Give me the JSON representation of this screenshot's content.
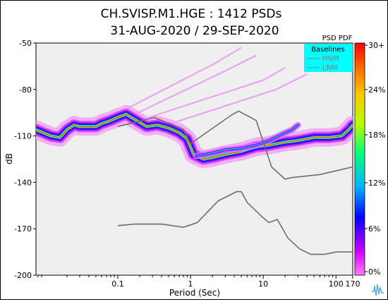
{
  "chart_data": {
    "type": "heatmap",
    "title_line1": "CH.SVISP.M1.HGE : 1412 PSDs",
    "title_line2": "31-AUG-2020 / 29-SEP-2020",
    "xlabel": "Period (Sec)",
    "ylabel": "dB",
    "x_scale": "log",
    "xlim": [
      0.0075,
      170
    ],
    "ylim": [
      -200,
      -50
    ],
    "x_ticks": [
      {
        "value": 0.1,
        "label": "0.1"
      },
      {
        "value": 1,
        "label": "1"
      },
      {
        "value": 10,
        "label": "10"
      },
      {
        "value": 100,
        "label": "100"
      },
      {
        "value": 170,
        "label": "170"
      }
    ],
    "y_ticks": [
      -50,
      -80,
      -110,
      -140,
      -170,
      -200
    ],
    "legend": {
      "title": "Baselines",
      "entries": [
        {
          "name": "HNM",
          "color": "#808080"
        },
        {
          "name": "LNM",
          "color": "#808080"
        }
      ],
      "background": "#00ffff"
    },
    "colorbar": {
      "title": "PSD PDF",
      "labels": [
        "30+",
        "24%",
        "18%",
        "12%",
        "6%",
        "0%"
      ],
      "stops": [
        "#ff00ff",
        "#0000ff",
        "#00c8ff",
        "#00ff00",
        "#ffff00",
        "#ff8000",
        "#ff0000"
      ]
    },
    "background_color": "#efefef",
    "hnm": [
      [
        0.1,
        -104
      ],
      [
        0.22,
        -100
      ],
      [
        0.32,
        -98
      ],
      [
        0.8,
        -106
      ],
      [
        1.0,
        -115
      ],
      [
        3.8,
        -96
      ],
      [
        4.6,
        -94
      ],
      [
        8.0,
        -100
      ],
      [
        13,
        -130
      ],
      [
        20,
        -138
      ],
      [
        24,
        -137
      ],
      [
        60,
        -135
      ],
      [
        170,
        -130
      ]
    ],
    "lnm": [
      [
        0.1,
        -168
      ],
      [
        0.17,
        -167
      ],
      [
        0.4,
        -167
      ],
      [
        0.8,
        -169
      ],
      [
        1.24,
        -166
      ],
      [
        2.4,
        -152
      ],
      [
        4.3,
        -146
      ],
      [
        5.0,
        -146
      ],
      [
        6.0,
        -153
      ],
      [
        10,
        -163
      ],
      [
        12,
        -166
      ],
      [
        15.6,
        -164
      ],
      [
        21.9,
        -176
      ],
      [
        31.6,
        -183
      ],
      [
        45,
        -186.5
      ],
      [
        70,
        -186.5
      ],
      [
        101,
        -185
      ],
      [
        170,
        -185
      ]
    ],
    "pdf_ridge": [
      [
        0.0075,
        -106
      ],
      [
        0.012,
        -110
      ],
      [
        0.016,
        -111
      ],
      [
        0.02,
        -106
      ],
      [
        0.025,
        -103
      ],
      [
        0.03,
        -104
      ],
      [
        0.04,
        -104
      ],
      [
        0.05,
        -104
      ],
      [
        0.06,
        -102
      ],
      [
        0.08,
        -100
      ],
      [
        0.1,
        -98
      ],
      [
        0.13,
        -96
      ],
      [
        0.18,
        -100
      ],
      [
        0.25,
        -104
      ],
      [
        0.35,
        -103
      ],
      [
        0.5,
        -105
      ],
      [
        0.7,
        -108
      ],
      [
        0.9,
        -112
      ],
      [
        1.1,
        -122
      ],
      [
        1.5,
        -125
      ],
      [
        2.0,
        -124
      ],
      [
        3.0,
        -122
      ],
      [
        5.0,
        -120
      ],
      [
        8.0,
        -117
      ],
      [
        12,
        -116
      ],
      [
        20,
        -114
      ],
      [
        30,
        -113
      ],
      [
        50,
        -111
      ],
      [
        80,
        -111
      ],
      [
        120,
        -110
      ],
      [
        150,
        -106
      ],
      [
        170,
        -103
      ]
    ],
    "upper_ridge": [
      [
        1.2,
        -123
      ],
      [
        2.0,
        -121
      ],
      [
        3.0,
        -119
      ],
      [
        5.0,
        -118
      ],
      [
        8.0,
        -116
      ],
      [
        12,
        -113
      ],
      [
        18,
        -109
      ],
      [
        25,
        -106
      ],
      [
        30,
        -103
      ]
    ],
    "diagonal_lines": [
      [
        [
          0.03,
          -108
        ],
        [
          2.0,
          -64
        ],
        [
          5.0,
          -53
        ]
      ],
      [
        [
          0.05,
          -108
        ],
        [
          3.0,
          -68
        ],
        [
          8.0,
          -58
        ]
      ],
      [
        [
          0.2,
          -100
        ],
        [
          10,
          -74
        ],
        [
          20,
          -66
        ]
      ],
      [
        [
          0.4,
          -104
        ],
        [
          15,
          -80
        ],
        [
          40,
          -70
        ]
      ]
    ]
  }
}
